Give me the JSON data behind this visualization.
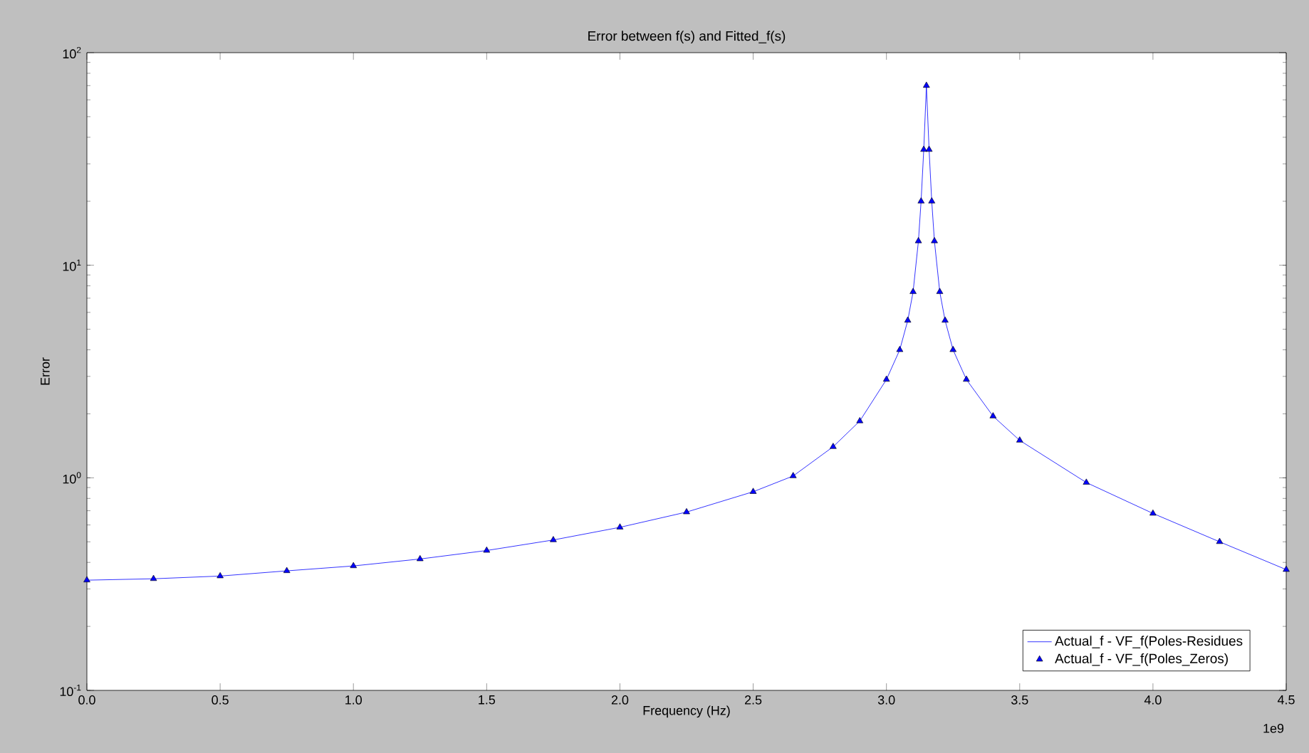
{
  "chart_data": {
    "type": "line",
    "title": "Error between f(s) and Fitted_f(s)",
    "xlabel": "Frequency (Hz)",
    "ylabel": "Error",
    "annotations": [
      "1e9"
    ],
    "log": "y",
    "grid": false,
    "legend": "bottom right",
    "xlim": [
      0,
      4.5
    ],
    "ylim": [
      0.1,
      100
    ],
    "xticks": [
      {
        "value": 0,
        "label": "0.0"
      },
      0.5,
      {
        "value": 1,
        "label": "1.0"
      },
      1.5,
      {
        "value": 2,
        "label": "2.0"
      },
      2.5,
      {
        "value": 3,
        "label": "3.0"
      },
      3.5,
      {
        "value": 4,
        "label": "4.0"
      },
      4.5
    ],
    "yticks": [
      {
        "value": 0.1,
        "label": "10$^{-1}$"
      },
      {
        "value": 1,
        "label": "10$^{0}$"
      },
      {
        "value": 10,
        "label": "10$^{1}$"
      },
      {
        "value": 100,
        "label": "10$^{2}$"
      }
    ],
    "x": [
      0,
      0.25,
      0.5,
      0.75,
      1.0,
      1.25,
      1.5,
      1.75,
      2.0,
      2.25,
      2.5,
      2.65,
      2.8,
      2.9,
      3.0,
      3.05,
      3.08,
      3.1,
      3.12,
      3.13,
      3.14,
      3.15,
      3.16,
      3.17,
      3.18,
      3.2,
      3.22,
      3.25,
      3.3,
      3.4,
      3.5,
      3.75,
      4.0,
      4.25,
      4.5
    ],
    "series": [
      {
        "name": "Actual_f - VF_f(Poles-Residues",
        "marker": "none",
        "line_style": "solid",
        "color": "#0000ff",
        "values": [
          0.33,
          0.335,
          0.345,
          0.365,
          0.385,
          0.415,
          0.455,
          0.51,
          0.585,
          0.69,
          0.86,
          1.02,
          1.4,
          1.85,
          2.9,
          4.0,
          5.5,
          7.5,
          13,
          20,
          35,
          70,
          35,
          20,
          13,
          7.5,
          5.5,
          4.0,
          2.9,
          1.95,
          1.5,
          0.95,
          0.68,
          0.5,
          0.37
        ]
      },
      {
        "name": "Actual_f - VF_f(Poles_Zeros)",
        "type": "scatter",
        "marker": "triangle",
        "color": "#0000ff",
        "values": [
          0.33,
          0.335,
          0.345,
          0.365,
          0.385,
          0.415,
          0.455,
          0.51,
          0.585,
          0.69,
          0.86,
          1.02,
          1.4,
          1.85,
          2.9,
          4.0,
          5.5,
          7.5,
          13,
          20,
          35,
          70,
          35,
          20,
          13,
          7.5,
          5.5,
          4.0,
          2.9,
          1.95,
          1.5,
          0.95,
          0.68,
          0.5,
          0.37
        ]
      }
    ]
  }
}
